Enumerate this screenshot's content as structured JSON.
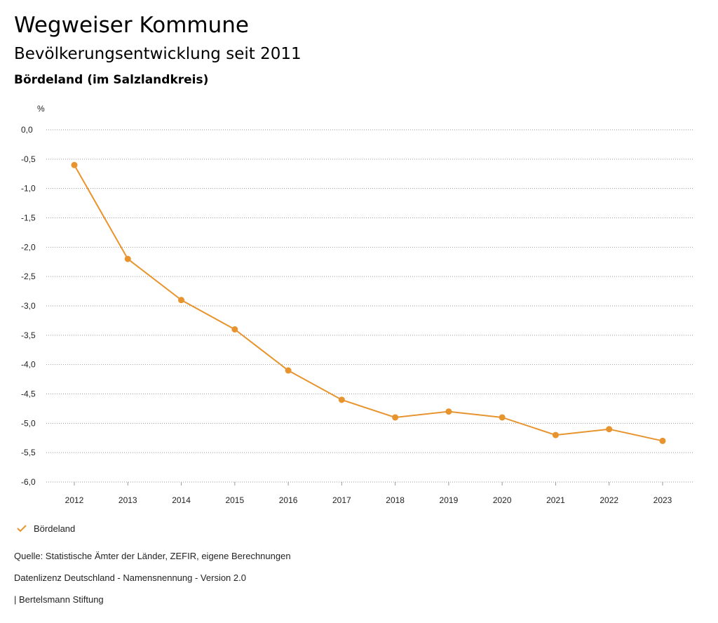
{
  "header": {
    "title": "Wegweiser Kommune",
    "subtitle": "Bevölkerungsentwicklung seit 2011",
    "region": "Bördeland (im Salzlandkreis)"
  },
  "chart_data": {
    "type": "line",
    "ylabel": "%",
    "ylim": [
      -6.0,
      0.0
    ],
    "yticks": [
      "0,0",
      "-0,5",
      "-1,0",
      "-1,5",
      "-2,0",
      "-2,5",
      "-3,0",
      "-3,5",
      "-4,0",
      "-4,5",
      "-5,0",
      "-5,5",
      "-6,0"
    ],
    "categories": [
      "2012",
      "2013",
      "2014",
      "2015",
      "2016",
      "2017",
      "2018",
      "2019",
      "2020",
      "2021",
      "2022",
      "2023"
    ],
    "series": [
      {
        "name": "Bördeland",
        "values": [
          -0.6,
          -2.2,
          -2.9,
          -3.4,
          -4.1,
          -4.6,
          -4.9,
          -4.8,
          -4.9,
          -5.2,
          -5.1,
          -5.3
        ]
      }
    ],
    "color": "#e8942e",
    "grid": true,
    "legend": "bottom-left"
  },
  "legend": {
    "label": "Bördeland"
  },
  "footer": {
    "source": "Quelle: Statistische Ämter der Länder, ZEFIR, eigene Berechnungen",
    "license": "Datenlizenz Deutschland - Namensnennung - Version 2.0",
    "org": "| Bertelsmann Stiftung"
  }
}
